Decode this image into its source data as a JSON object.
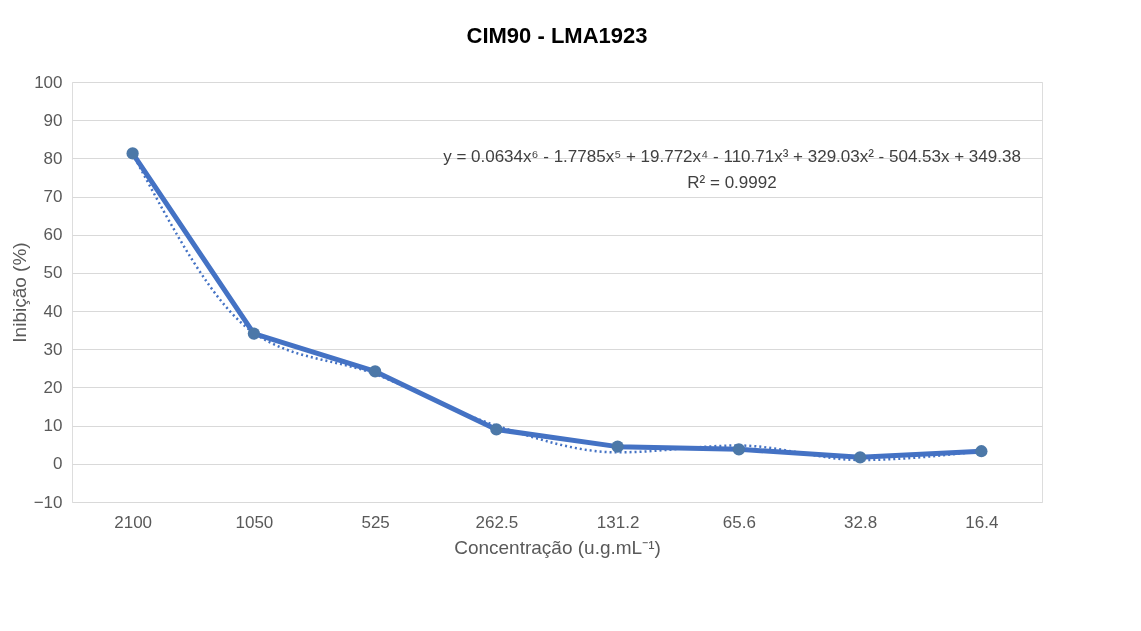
{
  "chart_data": {
    "type": "line",
    "title": "CIM90 - LMA1923",
    "xlabel": "Concentração (u.g.mL⁻¹)",
    "ylabel": "Inibição (%)",
    "categories": [
      "2100",
      "1050",
      "525",
      "262.5",
      "131.2",
      "65.6",
      "32.8",
      "16.4"
    ],
    "series": [
      {
        "type": "line",
        "color": "#4472c4",
        "marker": "circle",
        "line_style": "solid",
        "values": [
          81.3,
          34.1,
          24.2,
          9.0,
          4.5,
          3.8,
          1.7,
          3.3
        ]
      },
      {
        "type": "line",
        "color": "#4472c4",
        "marker": "none",
        "line_style": "dotted",
        "values": [
          81.2,
          34.3,
          23.5,
          10.0,
          3.0,
          4.8,
          1.0,
          3.3
        ]
      }
    ],
    "ylim": [
      -10,
      100
    ],
    "yticks": [
      -10,
      0,
      10,
      20,
      30,
      40,
      50,
      60,
      70,
      80,
      90,
      100
    ],
    "grid": "y",
    "legend": false,
    "annotations": [
      "y = 0.0634x⁶ - 1.7785x⁵ + 19.772x⁴ - 110.71x³ + 329.03x² - 504.53x + 349.38",
      "R² = 0.9992"
    ]
  }
}
